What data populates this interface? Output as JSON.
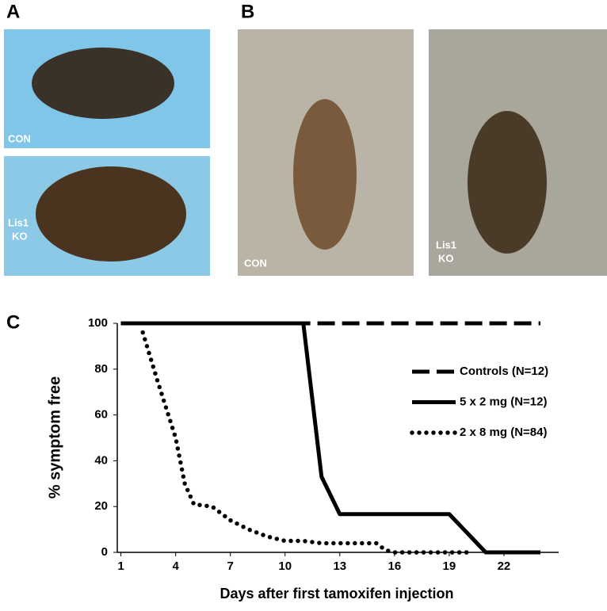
{
  "panels": {
    "a": {
      "letter": "A",
      "top_label": "CON",
      "bottom_label": [
        "Lis1",
        "KO"
      ]
    },
    "b": {
      "letter": "B",
      "left_label": "CON",
      "right_label": [
        "Lis1",
        "KO"
      ]
    }
  },
  "chart_data": {
    "type": "line",
    "letter": "C",
    "y_label": "% symptom free",
    "x_label": "Days after first tamoxifen injection",
    "xlim": [
      0.8,
      25
    ],
    "ylim": [
      0,
      100
    ],
    "xticks": [
      1,
      4,
      7,
      10,
      13,
      16,
      19,
      22
    ],
    "yticks": [
      0,
      20,
      40,
      60,
      80,
      100
    ],
    "legend": "right",
    "series": [
      {
        "name": "Controls (N=12)",
        "color": "#000000",
        "style": "dashed",
        "x": [
          1,
          24
        ],
        "values": [
          100,
          100
        ]
      },
      {
        "name": "5 x 2 mg (N=12)",
        "color": "#000000",
        "style": "solid",
        "x": [
          1,
          11,
          12,
          13,
          19,
          21,
          24
        ],
        "values": [
          100,
          100,
          33,
          16.7,
          16.7,
          0,
          0
        ]
      },
      {
        "name": "2 x 8 mg (N=84)",
        "color": "#000000",
        "style": "dotted",
        "x": [
          2.2,
          3,
          4,
          4.5,
          5,
          6,
          7,
          8,
          9,
          10,
          11,
          12,
          13,
          15,
          15.5,
          16,
          20
        ],
        "values": [
          96,
          75,
          50,
          30,
          21,
          20,
          14,
          10,
          7,
          5,
          5,
          4,
          4,
          4,
          1,
          0,
          0
        ]
      }
    ]
  }
}
